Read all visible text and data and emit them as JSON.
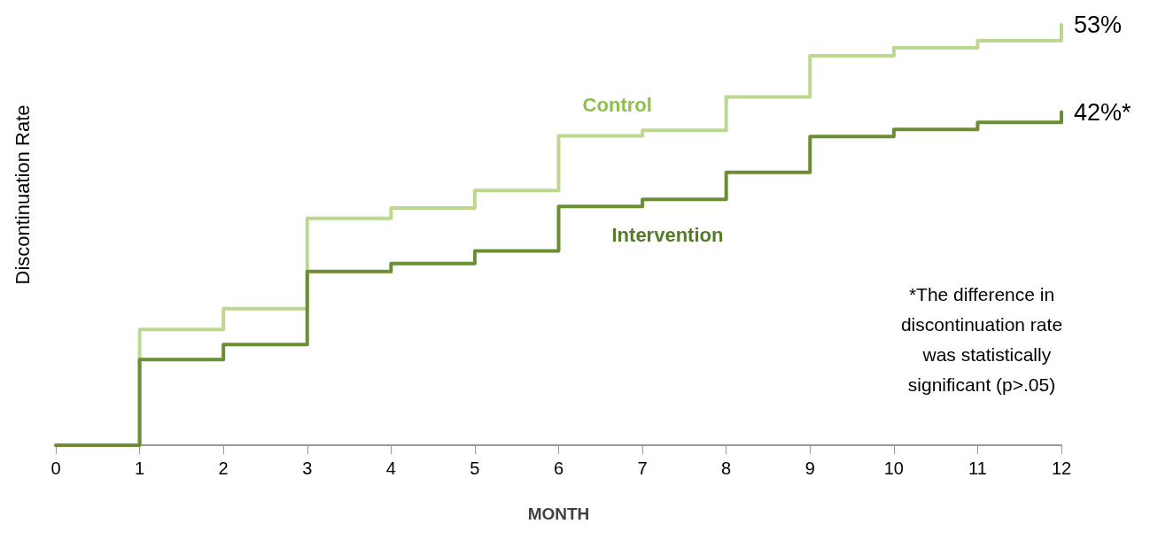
{
  "chart_data": {
    "type": "step",
    "xlabel": "MONTH",
    "ylabel": "Discontinuation Rate",
    "x": [
      0,
      1,
      2,
      3,
      4,
      5,
      6,
      7,
      8,
      9,
      10,
      11,
      12
    ],
    "xlim": [
      0,
      12
    ],
    "xticks": [
      0,
      1,
      2,
      3,
      4,
      5,
      6,
      7,
      8,
      9,
      10,
      11,
      12
    ],
    "series": [
      {
        "name": "Control",
        "color": "#bcd88f",
        "values": [
          0,
          14.6,
          17.2,
          28.6,
          29.9,
          32.1,
          39,
          39.7,
          43.9,
          49.1,
          50.1,
          51,
          53
        ],
        "value_labels": [
          null,
          null,
          null,
          null,
          null,
          null,
          null,
          null,
          null,
          null,
          null,
          null,
          "53%"
        ]
      },
      {
        "name": "Intervention",
        "color": "#6b8e34",
        "values": [
          0,
          10.8,
          12.7,
          21.9,
          22.9,
          24.5,
          30.1,
          31,
          34.4,
          38.9,
          39.8,
          40.7,
          42
        ],
        "value_labels": [
          null,
          null,
          null,
          null,
          null,
          null,
          null,
          null,
          null,
          null,
          null,
          null,
          "42%*"
        ]
      }
    ],
    "annotations": [
      "*The difference in\ndiscontinuation rate\n  was statistically\nsignificant (p>.05)"
    ],
    "grid": false,
    "legend": false,
    "marker": "none",
    "line_style": "solid"
  }
}
